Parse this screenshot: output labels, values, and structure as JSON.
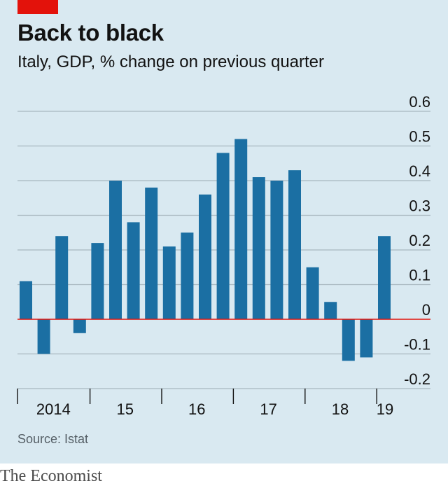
{
  "header": {
    "title": "Back to black",
    "subtitle": "Italy, GDP, % change on previous quarter"
  },
  "footer": {
    "source": "Source: Istat",
    "brand": "The Economist"
  },
  "colors": {
    "bar": "#1b6fa3",
    "zero_line": "#e3120b",
    "grid": "#a9b8c0",
    "panel": "#d9e9f1",
    "accent": "#e3120b"
  },
  "chart_data": {
    "type": "bar",
    "title": "Back to black",
    "subtitle": "Italy, GDP, % change on previous quarter",
    "categories": [
      "2014 Q1",
      "2014 Q2",
      "2014 Q3",
      "2014 Q4",
      "2015 Q1",
      "2015 Q2",
      "2015 Q3",
      "2015 Q4",
      "2016 Q1",
      "2016 Q2",
      "2016 Q3",
      "2016 Q4",
      "2017 Q1",
      "2017 Q2",
      "2017 Q3",
      "2017 Q4",
      "2018 Q1",
      "2018 Q2",
      "2018 Q3",
      "2018 Q4",
      "2019 Q1"
    ],
    "values": [
      0.11,
      -0.1,
      0.24,
      -0.04,
      0.22,
      0.4,
      0.28,
      0.38,
      0.21,
      0.25,
      0.36,
      0.48,
      0.52,
      0.41,
      0.4,
      0.43,
      0.15,
      0.05,
      -0.12,
      -0.11,
      0.24
    ],
    "ylim": [
      -0.2,
      0.6
    ],
    "y_ticks": [
      0.6,
      0.5,
      0.4,
      0.3,
      0.2,
      0.1,
      0,
      -0.1,
      -0.2
    ],
    "y_tick_labels": [
      "0.6",
      "0.5",
      "0.4",
      "0.3",
      "0.2",
      "0.1",
      "0",
      "-0.1",
      "-0.2"
    ],
    "x_tick_labels": [
      "2014",
      "15",
      "16",
      "17",
      "18",
      "19"
    ],
    "x_label_groups": [
      [
        0,
        3
      ],
      [
        4,
        7
      ],
      [
        8,
        11
      ],
      [
        12,
        15
      ],
      [
        16,
        19
      ],
      [
        20,
        20
      ]
    ],
    "y_axis_side": "right",
    "grid": true,
    "source": "Source: Istat"
  }
}
